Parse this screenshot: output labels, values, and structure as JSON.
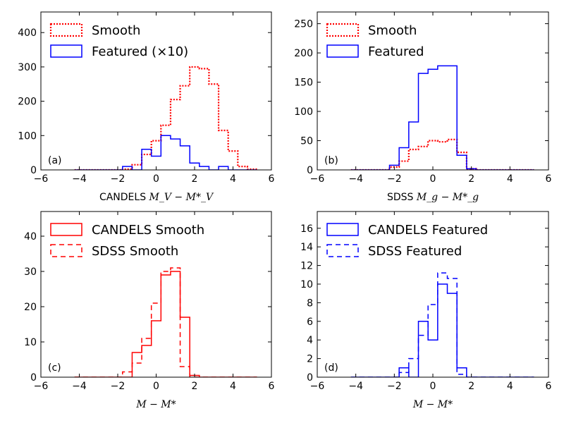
{
  "chart_data": [
    {
      "type": "histogram",
      "panel": "(a)",
      "xlabel_prefix": "CANDELS",
      "xlabel_math": "M_V − M*_V",
      "xlim": [
        -6,
        6
      ],
      "ylim": [
        0,
        460
      ],
      "xticks": [
        -6,
        -4,
        -2,
        0,
        2,
        4,
        6
      ],
      "yticks": [
        0,
        100,
        200,
        300,
        400
      ],
      "legend_position": "upper-left",
      "bin_edges": [
        -4.25,
        -3.75,
        -3.25,
        -2.75,
        -2.25,
        -1.75,
        -1.25,
        -0.75,
        -0.25,
        0.25,
        0.75,
        1.25,
        1.75,
        2.25,
        2.75,
        3.25,
        3.75,
        4.25,
        4.75,
        5.25
      ],
      "series": [
        {
          "name": "Smooth",
          "color": "#ff0000",
          "style": "dotted",
          "values": [
            0,
            0,
            0,
            0,
            0,
            2,
            15,
            45,
            85,
            130,
            205,
            245,
            300,
            295,
            250,
            115,
            55,
            10,
            2
          ]
        },
        {
          "name": "Featured",
          "name_suffix": "(×10)",
          "color": "#0000ff",
          "style": "solid",
          "values": [
            0,
            0,
            0,
            0,
            0,
            10,
            0,
            60,
            40,
            100,
            90,
            70,
            20,
            10,
            0,
            10,
            0,
            0,
            0
          ]
        }
      ]
    },
    {
      "type": "histogram",
      "panel": "(b)",
      "xlabel_prefix": "SDSS",
      "xlabel_math": "M_g − M*_g",
      "xlim": [
        -6,
        6
      ],
      "ylim": [
        0,
        270
      ],
      "xticks": [
        -6,
        -4,
        -2,
        0,
        2,
        4,
        6
      ],
      "yticks": [
        0,
        50,
        100,
        150,
        200,
        250
      ],
      "legend_position": "upper-left",
      "bin_edges": [
        -4.25,
        -3.75,
        -3.25,
        -2.75,
        -2.25,
        -1.75,
        -1.25,
        -0.75,
        -0.25,
        0.25,
        0.75,
        1.25,
        1.75,
        2.25,
        2.75,
        3.25,
        3.75,
        4.25,
        4.75,
        5.25
      ],
      "series": [
        {
          "name": "Smooth",
          "color": "#ff0000",
          "style": "dotted",
          "values": [
            0,
            0,
            0,
            0,
            5,
            15,
            35,
            40,
            50,
            48,
            52,
            30,
            2,
            0,
            0,
            0,
            0,
            0,
            0
          ]
        },
        {
          "name": "Featured",
          "color": "#0000ff",
          "style": "solid",
          "values": [
            0,
            0,
            0,
            0,
            8,
            38,
            82,
            165,
            172,
            178,
            178,
            25,
            2,
            0,
            0,
            0,
            0,
            0,
            0
          ]
        }
      ]
    },
    {
      "type": "histogram",
      "panel": "(c)",
      "xlabel_prefix": "",
      "xlabel_math": "M − M*",
      "xlim": [
        -6,
        6
      ],
      "ylim": [
        0,
        47
      ],
      "xticks": [
        -6,
        -4,
        -2,
        0,
        2,
        4,
        6
      ],
      "yticks": [
        0,
        10,
        20,
        30,
        40
      ],
      "legend_position": "upper-left",
      "bin_edges": [
        -4.25,
        -3.75,
        -3.25,
        -2.75,
        -2.25,
        -1.75,
        -1.25,
        -0.75,
        -0.25,
        0.25,
        0.75,
        1.25,
        1.75,
        2.25,
        2.75,
        3.25,
        3.75,
        4.25,
        4.75,
        5.25
      ],
      "series": [
        {
          "name": "CANDELS Smooth",
          "color": "#ff0000",
          "style": "solid",
          "values": [
            0,
            0,
            0,
            0,
            0,
            0,
            7,
            9,
            16,
            29,
            30,
            17,
            0.5,
            0,
            0,
            0,
            0,
            0,
            0
          ]
        },
        {
          "name": "SDSS Smooth",
          "color": "#ff0000",
          "style": "dashed",
          "values": [
            0,
            0,
            0,
            0,
            0,
            1.5,
            4,
            11,
            21,
            30,
            31,
            3,
            0,
            0,
            0,
            0,
            0,
            0,
            0
          ]
        }
      ]
    },
    {
      "type": "histogram",
      "panel": "(d)",
      "xlabel_prefix": "",
      "xlabel_math": "M − M*",
      "xlim": [
        -6,
        6
      ],
      "ylim": [
        0,
        17.8
      ],
      "xticks": [
        -6,
        -4,
        -2,
        0,
        2,
        4,
        6
      ],
      "yticks": [
        0,
        2,
        4,
        6,
        8,
        10,
        12,
        14,
        16
      ],
      "legend_position": "upper-left",
      "bin_edges": [
        -4.25,
        -3.75,
        -3.25,
        -2.75,
        -2.25,
        -1.75,
        -1.25,
        -0.75,
        -0.25,
        0.25,
        0.75,
        1.25,
        1.75,
        2.25,
        2.75,
        3.25,
        3.75,
        4.25,
        4.75,
        5.25
      ],
      "series": [
        {
          "name": "CANDELS Featured",
          "color": "#0000ff",
          "style": "solid",
          "values": [
            0,
            0,
            0,
            0,
            0,
            1,
            0,
            6,
            4,
            10,
            9,
            1,
            0,
            0,
            0,
            0,
            0,
            0,
            0
          ]
        },
        {
          "name": "SDSS Featured",
          "color": "#0000ff",
          "style": "dashed",
          "values": [
            0,
            0,
            0,
            0,
            0,
            0.5,
            2,
            4.5,
            7.8,
            11.2,
            10.6,
            0.3,
            0,
            0,
            0,
            0,
            0,
            0,
            0
          ]
        }
      ]
    }
  ]
}
